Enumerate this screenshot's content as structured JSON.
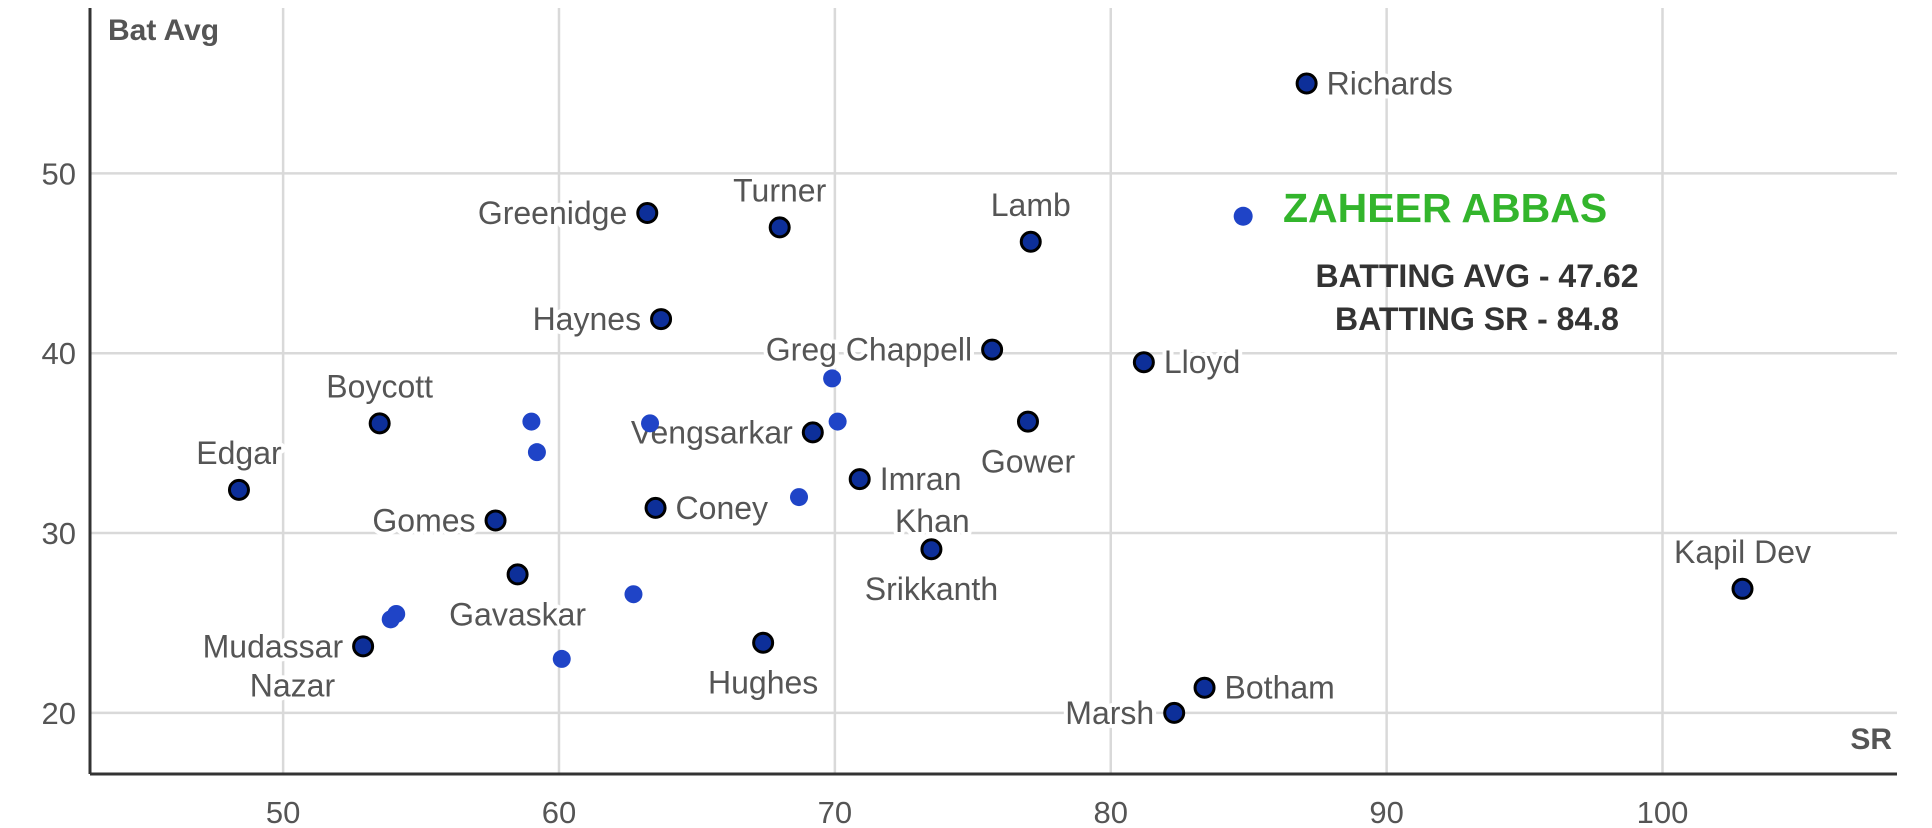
{
  "chart_data": {
    "type": "scatter",
    "xlabel": "SR",
    "ylabel": "Bat Avg",
    "xlim": [
      43,
      108.5
    ],
    "ylim": [
      16.6,
      59.2
    ],
    "x_ticks": [
      50,
      60,
      70,
      80,
      90,
      100
    ],
    "y_ticks": [
      20,
      30,
      40,
      50
    ],
    "grid": true,
    "colors": {
      "labeled_point_fill": "#0d2f99",
      "labeled_point_stroke": "#000000",
      "unlabeled_point_fill": "#1f44c7",
      "highlight_point_fill": "#1f44c7",
      "highlight_text": "#33b52c",
      "label_text": "#555555"
    },
    "labeled_points": [
      {
        "label": "Richards",
        "x": 87.1,
        "y": 55.0,
        "anchor": "right"
      },
      {
        "label": "Greenidge",
        "x": 63.2,
        "y": 47.8,
        "anchor": "left"
      },
      {
        "label": "Turner",
        "x": 68.0,
        "y": 47.0,
        "anchor": "top"
      },
      {
        "label": "Lamb",
        "x": 77.1,
        "y": 46.2,
        "anchor": "top"
      },
      {
        "label": "Haynes",
        "x": 63.7,
        "y": 41.9,
        "anchor": "left"
      },
      {
        "label": "Greg Chappell",
        "x": 75.7,
        "y": 40.2,
        "anchor": "left"
      },
      {
        "label": "Lloyd",
        "x": 81.2,
        "y": 39.5,
        "anchor": "right"
      },
      {
        "label": "Boycott",
        "x": 53.5,
        "y": 36.1,
        "anchor": "top"
      },
      {
        "label": "Vengsarkar",
        "x": 69.2,
        "y": 35.6,
        "anchor": "left"
      },
      {
        "label": "Gower",
        "x": 77.0,
        "y": 36.2,
        "anchor": "bottom"
      },
      {
        "label": "Edgar",
        "x": 48.4,
        "y": 32.4,
        "anchor": "top"
      },
      {
        "label": "Imran Khan",
        "x": 70.9,
        "y": 33.0,
        "anchor": "right-two-line"
      },
      {
        "label": "Gomes",
        "x": 57.7,
        "y": 30.7,
        "anchor": "left"
      },
      {
        "label": "Coney",
        "x": 63.5,
        "y": 31.4,
        "anchor": "right"
      },
      {
        "label": "Srikkanth",
        "x": 73.5,
        "y": 29.1,
        "anchor": "bottom"
      },
      {
        "label": "Kapil Dev",
        "x": 102.9,
        "y": 26.9,
        "anchor": "top"
      },
      {
        "label": "Gavaskar",
        "x": 58.5,
        "y": 27.7,
        "anchor": "bottom"
      },
      {
        "label": "Hughes",
        "x": 67.4,
        "y": 23.9,
        "anchor": "bottom"
      },
      {
        "label": "Mudassar Nazar",
        "x": 52.9,
        "y": 23.7,
        "anchor": "left-two-line"
      },
      {
        "label": "Botham",
        "x": 83.4,
        "y": 21.4,
        "anchor": "right"
      },
      {
        "label": "Marsh",
        "x": 82.3,
        "y": 20.0,
        "anchor": "left"
      }
    ],
    "unlabeled_points": [
      {
        "x": 59.0,
        "y": 36.2
      },
      {
        "x": 59.2,
        "y": 34.5
      },
      {
        "x": 63.3,
        "y": 36.1
      },
      {
        "x": 69.9,
        "y": 38.6
      },
      {
        "x": 70.1,
        "y": 36.2
      },
      {
        "x": 68.7,
        "y": 32.0
      },
      {
        "x": 62.7,
        "y": 26.6
      },
      {
        "x": 54.1,
        "y": 25.5
      },
      {
        "x": 53.9,
        "y": 25.2
      },
      {
        "x": 60.1,
        "y": 23.0
      }
    ],
    "highlight": {
      "name": "ZAHEER ABBAS",
      "x": 84.8,
      "y": 47.62,
      "avg_text": "BATTING AVG - 47.62",
      "sr_text": "BATTING SR - 84.8"
    }
  }
}
